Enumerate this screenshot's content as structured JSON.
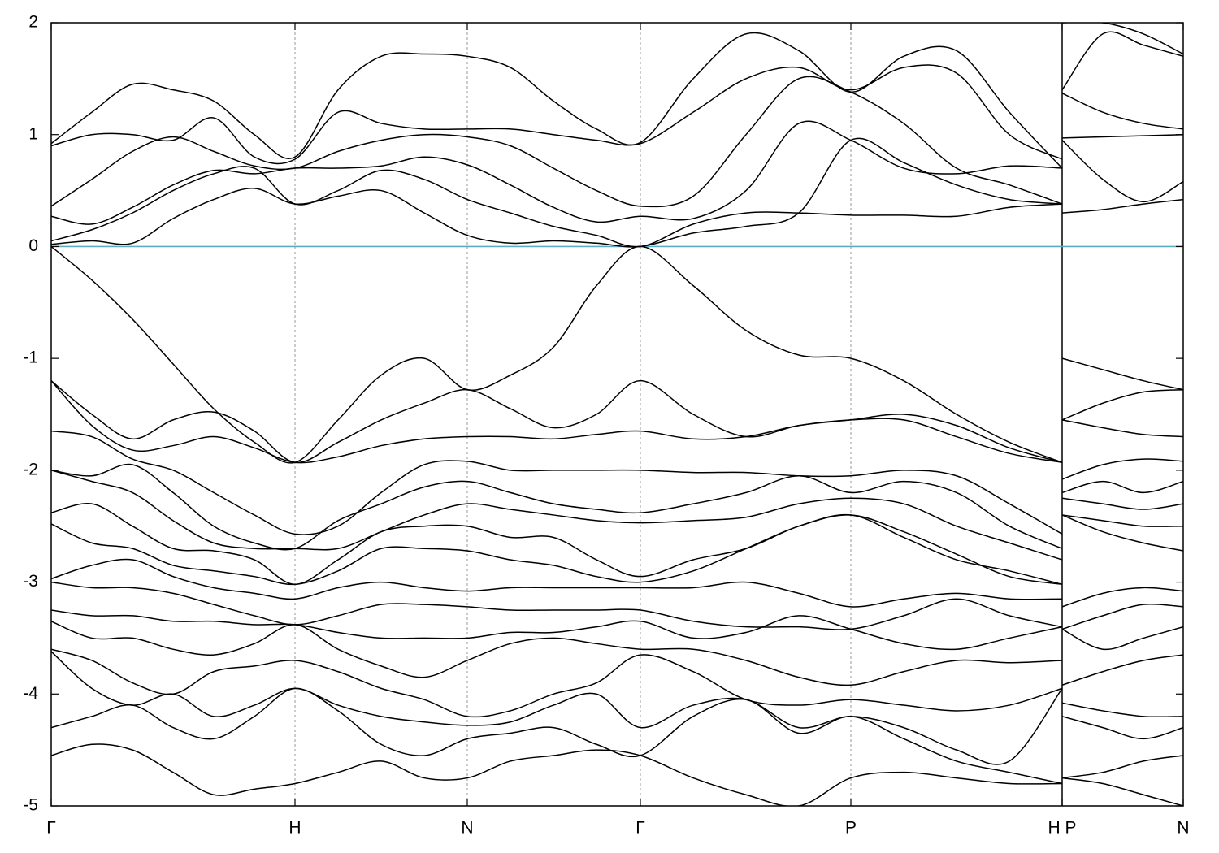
{
  "chart_data": {
    "type": "line",
    "color": "#000000",
    "hline": 0,
    "hline_color": "#5aaec4",
    "grid": true,
    "xlim": [
      0,
      1393
    ],
    "ylim": [
      -5,
      2
    ],
    "yticks": [
      -5,
      -4,
      -3,
      -2,
      -1,
      0,
      1,
      2
    ],
    "xticks": [
      {
        "value": 0,
        "label": "Γ"
      },
      {
        "value": 300,
        "label": "H"
      },
      {
        "value": 512,
        "label": "N"
      },
      {
        "value": 725,
        "label": "Γ"
      },
      {
        "value": 984,
        "label": "P"
      },
      {
        "value": 1244,
        "label": "H P"
      },
      {
        "value": 1393,
        "label": "N"
      }
    ],
    "x": [
      0,
      50,
      100,
      150,
      200,
      250,
      300,
      353,
      406,
      459,
      512,
      565,
      618,
      671,
      725,
      790,
      855,
      920,
      984,
      1049,
      1114,
      1179,
      1244,
      1244,
      1244,
      1294,
      1344,
      1393
    ],
    "series": [
      {
        "values": [
          0.02,
          0.05,
          0.03,
          0.25,
          0.42,
          0.52,
          0.38,
          0.45,
          0.5,
          0.3,
          0.1,
          0.03,
          0.05,
          0.03,
          0.0,
          0.12,
          0.18,
          0.3,
          0.95,
          0.75,
          0.55,
          0.42,
          0.38,
          null,
          0.3,
          0.33,
          0.38,
          0.42
        ]
      },
      {
        "values": [
          0.05,
          0.15,
          0.3,
          0.5,
          0.65,
          0.7,
          0.38,
          0.5,
          0.68,
          0.6,
          0.42,
          0.3,
          0.18,
          0.1,
          0.0,
          0.2,
          0.3,
          0.3,
          0.28,
          0.28,
          0.27,
          0.35,
          0.38,
          null,
          0.95,
          0.6,
          0.4,
          0.58
        ]
      },
      {
        "values": [
          0.27,
          0.2,
          0.35,
          0.55,
          0.68,
          0.65,
          0.7,
          0.7,
          0.72,
          0.8,
          0.73,
          0.55,
          0.35,
          0.22,
          0.27,
          0.25,
          0.5,
          1.1,
          0.95,
          0.7,
          0.65,
          0.72,
          0.7,
          null,
          0.97,
          0.98,
          0.99,
          1.0
        ]
      },
      {
        "values": [
          0.36,
          0.6,
          0.85,
          0.98,
          0.85,
          0.72,
          0.7,
          0.85,
          0.95,
          1.0,
          0.98,
          0.9,
          0.7,
          0.5,
          0.36,
          0.45,
          1.0,
          1.5,
          1.38,
          1.1,
          0.7,
          0.55,
          0.38,
          null,
          1.37,
          1.2,
          1.1,
          1.05
        ]
      },
      {
        "values": [
          0.9,
          1.0,
          1.0,
          0.95,
          1.15,
          0.8,
          0.78,
          1.2,
          1.1,
          1.05,
          1.05,
          1.05,
          1.0,
          0.95,
          0.92,
          1.2,
          1.5,
          1.6,
          1.4,
          1.6,
          1.55,
          1.0,
          0.78,
          null,
          1.4,
          1.9,
          1.8,
          1.7
        ]
      },
      {
        "values": [
          0.92,
          1.2,
          1.45,
          1.4,
          1.3,
          1.0,
          0.8,
          1.4,
          1.7,
          1.72,
          1.7,
          1.6,
          1.3,
          1.05,
          0.93,
          1.5,
          1.9,
          1.75,
          1.38,
          1.7,
          1.75,
          1.2,
          0.7,
          null,
          2.0,
          2.0,
          1.9,
          1.72
        ]
      },
      {
        "values": [
          0,
          -0.3,
          -0.65,
          -1.05,
          -1.45,
          -1.75,
          -1.93,
          -1.55,
          -1.15,
          -1.0,
          -1.28,
          -1.15,
          -0.9,
          -0.35,
          0,
          -0.35,
          -0.75,
          -0.97,
          -1.0,
          -1.2,
          -1.5,
          -1.75,
          -1.93,
          null,
          -1.0,
          -1.1,
          -1.2,
          -1.28
        ]
      },
      {
        "values": [
          -1.2,
          -1.5,
          -1.72,
          -1.55,
          -1.48,
          -1.65,
          -1.93,
          -1.75,
          -1.55,
          -1.4,
          -1.28,
          -1.45,
          -1.62,
          -1.5,
          -1.2,
          -1.5,
          -1.7,
          -1.6,
          -1.55,
          -1.5,
          -1.6,
          -1.8,
          -1.93,
          null,
          -1.55,
          -1.4,
          -1.3,
          -1.28
        ]
      },
      {
        "values": [
          -1.2,
          -1.6,
          -1.82,
          -1.78,
          -1.7,
          -1.8,
          -1.93,
          -1.88,
          -1.78,
          -1.72,
          -1.7,
          -1.7,
          -1.72,
          -1.68,
          -1.65,
          -1.72,
          -1.7,
          -1.6,
          -1.55,
          -1.55,
          -1.7,
          -1.85,
          -1.93,
          null,
          -1.55,
          -1.62,
          -1.68,
          -1.7
        ]
      },
      {
        "values": [
          -1.65,
          -1.7,
          -1.9,
          -2.0,
          -2.2,
          -2.4,
          -2.57,
          -2.5,
          -2.2,
          -1.95,
          -1.92,
          -2.0,
          -2.0,
          -2.0,
          -2.0,
          -2.02,
          -2.02,
          -2.05,
          -2.05,
          -2.0,
          -2.05,
          -2.3,
          -2.57,
          null,
          -2.08,
          -1.95,
          -1.9,
          -1.92
        ]
      },
      {
        "values": [
          -2.0,
          -2.05,
          -1.95,
          -2.2,
          -2.5,
          -2.65,
          -2.7,
          -2.45,
          -2.3,
          -2.15,
          -2.1,
          -2.2,
          -2.3,
          -2.35,
          -2.38,
          -2.3,
          -2.2,
          -2.05,
          -2.2,
          -2.1,
          -2.2,
          -2.5,
          -2.7,
          null,
          -2.2,
          -2.1,
          -2.2,
          -2.1
        ]
      },
      {
        "values": [
          -2.0,
          -2.1,
          -2.2,
          -2.45,
          -2.65,
          -2.7,
          -2.7,
          -2.7,
          -2.55,
          -2.4,
          -2.3,
          -2.35,
          -2.4,
          -2.45,
          -2.47,
          -2.45,
          -2.42,
          -2.3,
          -2.25,
          -2.3,
          -2.5,
          -2.65,
          -2.8,
          null,
          -2.25,
          -2.3,
          -2.35,
          -2.3
        ]
      },
      {
        "values": [
          -2.38,
          -2.3,
          -2.5,
          -2.7,
          -2.72,
          -2.8,
          -3.02,
          -2.8,
          -2.55,
          -2.5,
          -2.5,
          -2.6,
          -2.6,
          -2.8,
          -2.95,
          -2.8,
          -2.7,
          -2.5,
          -2.4,
          -2.6,
          -2.8,
          -2.9,
          -3.02,
          null,
          -2.4,
          -2.45,
          -2.5,
          -2.5
        ]
      },
      {
        "values": [
          -2.48,
          -2.65,
          -2.7,
          -2.85,
          -2.9,
          -2.95,
          -3.02,
          -2.9,
          -2.7,
          -2.7,
          -2.72,
          -2.8,
          -2.85,
          -2.95,
          -3.0,
          -2.9,
          -2.7,
          -2.5,
          -2.4,
          -2.55,
          -2.75,
          -2.95,
          -3.02,
          null,
          -2.4,
          -2.55,
          -2.65,
          -2.72
        ]
      },
      {
        "values": [
          -2.97,
          -2.85,
          -2.8,
          -2.95,
          -3.05,
          -3.1,
          -3.15,
          -3.05,
          -3.0,
          -3.05,
          -3.08,
          -3.05,
          -3.05,
          -3.05,
          -3.05,
          -3.05,
          -3.0,
          -3.1,
          -3.22,
          -3.15,
          -3.1,
          -3.15,
          -3.15,
          null,
          -3.22,
          -3.1,
          -3.05,
          -3.08
        ]
      },
      {
        "values": [
          -3.0,
          -3.05,
          -3.05,
          -3.1,
          -3.2,
          -3.3,
          -3.38,
          -3.3,
          -3.2,
          -3.2,
          -3.22,
          -3.25,
          -3.25,
          -3.25,
          -3.25,
          -3.35,
          -3.4,
          -3.4,
          -3.42,
          -3.3,
          -3.15,
          -3.3,
          -3.4,
          null,
          -3.42,
          -3.3,
          -3.2,
          -3.22
        ]
      },
      {
        "values": [
          -3.25,
          -3.3,
          -3.3,
          -3.35,
          -3.35,
          -3.38,
          -3.38,
          -3.45,
          -3.5,
          -3.5,
          -3.5,
          -3.45,
          -3.45,
          -3.4,
          -3.35,
          -3.5,
          -3.45,
          -3.3,
          -3.42,
          -3.55,
          -3.6,
          -3.5,
          -3.4,
          null,
          -3.42,
          -3.6,
          -3.5,
          -3.4
        ]
      },
      {
        "values": [
          -3.35,
          -3.5,
          -3.5,
          -3.6,
          -3.65,
          -3.55,
          -3.38,
          -3.6,
          -3.75,
          -3.85,
          -3.7,
          -3.55,
          -3.5,
          -3.55,
          -3.6,
          -3.6,
          -3.7,
          -3.85,
          -3.92,
          -3.8,
          -3.7,
          -3.72,
          -3.7,
          null,
          -3.92,
          -3.8,
          -3.7,
          -3.65
        ]
      },
      {
        "values": [
          -3.6,
          -3.7,
          -3.9,
          -4.0,
          -3.8,
          -3.75,
          -3.7,
          -3.8,
          -3.95,
          -4.05,
          -4.2,
          -4.15,
          -4.0,
          -3.9,
          -3.65,
          -3.8,
          -4.05,
          -4.1,
          -4.05,
          -4.1,
          -4.15,
          -4.1,
          -3.95,
          null,
          -4.08,
          -4.15,
          -4.2,
          -4.2
        ]
      },
      {
        "values": [
          -3.62,
          -3.95,
          -4.1,
          -4.0,
          -4.2,
          -4.1,
          -3.95,
          -4.1,
          -4.2,
          -4.25,
          -4.28,
          -4.25,
          -4.1,
          -4.0,
          -4.3,
          -4.1,
          -4.05,
          -4.3,
          -4.2,
          -4.3,
          -4.5,
          -4.6,
          -3.95,
          null,
          -4.2,
          -4.3,
          -4.4,
          -4.3
        ]
      },
      {
        "values": [
          -4.3,
          -4.2,
          -4.1,
          -4.3,
          -4.4,
          -4.2,
          -3.95,
          -4.15,
          -4.45,
          -4.55,
          -4.4,
          -4.35,
          -4.3,
          -4.45,
          -4.55,
          -4.2,
          -4.05,
          -4.35,
          -4.2,
          -4.4,
          -4.6,
          -4.7,
          -4.8,
          null,
          -4.75,
          -4.7,
          -4.6,
          -4.55
        ]
      },
      {
        "values": [
          -4.55,
          -4.45,
          -4.5,
          -4.7,
          -4.9,
          -4.85,
          -4.8,
          -4.7,
          -4.6,
          -4.75,
          -4.75,
          -4.6,
          -4.55,
          -4.5,
          -4.55,
          -4.75,
          -4.9,
          -5.0,
          -4.75,
          -4.7,
          -4.75,
          -4.8,
          -4.8,
          null,
          -4.75,
          -4.8,
          -4.9,
          -5.0
        ]
      }
    ]
  }
}
